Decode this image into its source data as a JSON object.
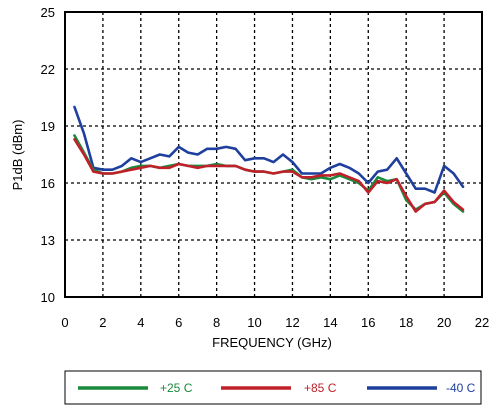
{
  "chart_data": {
    "type": "line",
    "title": "",
    "xlabel": "FREQUENCY (GHz)",
    "ylabel": "P1dB (dBm)",
    "xlim": [
      0,
      22
    ],
    "ylim": [
      10,
      25
    ],
    "xticks": [
      0,
      2,
      4,
      6,
      8,
      10,
      12,
      14,
      16,
      18,
      20,
      22
    ],
    "yticks": [
      10,
      13,
      16,
      19,
      22,
      25
    ],
    "grid": "dotted",
    "legend_position": "bottom",
    "series": [
      {
        "name": "+25 C",
        "color": "#1a8a3c",
        "x": [
          0.5,
          1.0,
          1.5,
          2.0,
          2.5,
          3.0,
          3.5,
          4.0,
          4.5,
          5.0,
          5.5,
          6.0,
          6.5,
          7.0,
          7.5,
          8.0,
          8.5,
          9.0,
          9.5,
          10.0,
          10.5,
          11.0,
          11.5,
          12.0,
          12.5,
          13.0,
          13.5,
          14.0,
          14.5,
          15.0,
          15.5,
          16.0,
          16.5,
          17.0,
          17.5,
          18.0,
          18.5,
          19.0,
          19.5,
          20.0,
          20.5,
          21.0
        ],
        "y": [
          18.5,
          17.6,
          16.7,
          16.5,
          16.5,
          16.6,
          16.8,
          16.9,
          16.9,
          16.8,
          16.9,
          17.0,
          16.9,
          16.9,
          16.9,
          17.0,
          16.9,
          16.9,
          16.7,
          16.6,
          16.6,
          16.5,
          16.6,
          16.7,
          16.3,
          16.2,
          16.3,
          16.2,
          16.4,
          16.2,
          16.0,
          15.6,
          16.3,
          16.1,
          16.2,
          15.1,
          14.6,
          14.9,
          15.0,
          15.5,
          14.9,
          14.5
        ]
      },
      {
        "name": "+85 C",
        "color": "#c0202a",
        "x": [
          0.5,
          1.0,
          1.5,
          2.0,
          2.5,
          3.0,
          3.5,
          4.0,
          4.5,
          5.0,
          5.5,
          6.0,
          6.5,
          7.0,
          7.5,
          8.0,
          8.5,
          9.0,
          9.5,
          10.0,
          10.5,
          11.0,
          11.5,
          12.0,
          12.5,
          13.0,
          13.5,
          14.0,
          14.5,
          15.0,
          15.5,
          16.0,
          16.5,
          17.0,
          17.5,
          18.0,
          18.5,
          19.0,
          19.5,
          20.0,
          20.5,
          21.0
        ],
        "y": [
          18.3,
          17.5,
          16.6,
          16.5,
          16.5,
          16.6,
          16.7,
          16.8,
          16.9,
          16.8,
          16.8,
          17.0,
          16.9,
          16.8,
          16.9,
          16.9,
          16.9,
          16.9,
          16.7,
          16.6,
          16.6,
          16.5,
          16.6,
          16.6,
          16.3,
          16.3,
          16.4,
          16.4,
          16.5,
          16.3,
          16.1,
          15.5,
          16.1,
          16.0,
          16.2,
          15.3,
          14.5,
          14.9,
          15.0,
          15.6,
          15.0,
          14.6
        ]
      },
      {
        "name": "-40 C",
        "color": "#1f3f9e",
        "x": [
          0.5,
          1.0,
          1.5,
          2.0,
          2.5,
          3.0,
          3.5,
          4.0,
          4.5,
          5.0,
          5.5,
          6.0,
          6.5,
          7.0,
          7.5,
          8.0,
          8.5,
          9.0,
          9.5,
          10.0,
          10.5,
          11.0,
          11.5,
          12.0,
          12.5,
          13.0,
          13.5,
          14.0,
          14.5,
          15.0,
          15.5,
          16.0,
          16.5,
          17.0,
          17.5,
          18.0,
          18.5,
          19.0,
          19.5,
          20.0,
          20.5,
          21.0
        ],
        "y": [
          20.0,
          18.6,
          16.8,
          16.7,
          16.7,
          16.9,
          17.3,
          17.1,
          17.3,
          17.5,
          17.4,
          17.9,
          17.6,
          17.5,
          17.8,
          17.8,
          17.9,
          17.8,
          17.2,
          17.3,
          17.3,
          17.1,
          17.5,
          17.1,
          16.5,
          16.5,
          16.5,
          16.8,
          17.0,
          16.8,
          16.5,
          16.0,
          16.6,
          16.7,
          17.3,
          16.5,
          15.7,
          15.7,
          15.5,
          16.9,
          16.5,
          15.8
        ]
      }
    ]
  }
}
